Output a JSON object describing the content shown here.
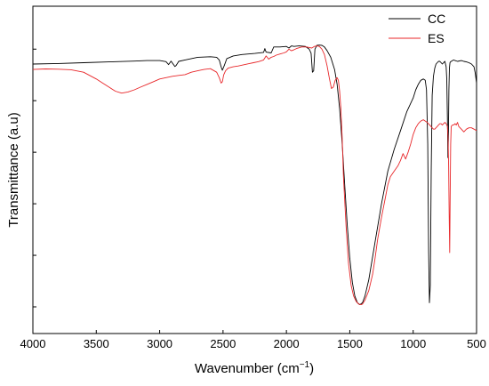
{
  "chart_data": {
    "type": "line",
    "title": "",
    "xlabel": "Wavenumber (cm",
    "xlabel_sup": "−1",
    "xlabel_close": ")",
    "ylabel": "Transmittance (a.u)",
    "xlim": [
      4000,
      500
    ],
    "x_reversed": true,
    "ylim": [
      0,
      100
    ],
    "y_tick_labels_shown": false,
    "y_ticks": [
      0,
      19,
      38,
      57,
      76,
      95
    ],
    "x_ticks": [
      4000,
      3500,
      3000,
      2500,
      2000,
      1500,
      1000,
      500
    ],
    "x_tick_labels": [
      "4000",
      "3500",
      "3000",
      "2500",
      "2000",
      "1500",
      "1000",
      "500"
    ],
    "grid": false,
    "legend_position": "top-right",
    "series": [
      {
        "name": "CC",
        "color": "#000000",
        "x": [
          4000,
          3800,
          3600,
          3400,
          3200,
          3100,
          3000,
          2950,
          2930,
          2910,
          2880,
          2870,
          2850,
          2800,
          2750,
          2700,
          2600,
          2550,
          2530,
          2515,
          2505,
          2490,
          2470,
          2420,
          2350,
          2250,
          2180,
          2170,
          2160,
          2120,
          2100,
          2050,
          2000,
          1980,
          1960,
          1940,
          1900,
          1850,
          1820,
          1805,
          1795,
          1785,
          1775,
          1760,
          1740,
          1720,
          1700,
          1680,
          1650,
          1620,
          1600,
          1580,
          1560,
          1540,
          1520,
          1500,
          1480,
          1460,
          1440,
          1420,
          1400,
          1380,
          1350,
          1300,
          1250,
          1200,
          1150,
          1100,
          1050,
          1000,
          980,
          960,
          940,
          920,
          905,
          895,
          885,
          878,
          872,
          865,
          858,
          850,
          840,
          830,
          820,
          810,
          800,
          790,
          780,
          770,
          760,
          750,
          740,
          735,
          730,
          726,
          722,
          718,
          714,
          710,
          706,
          700,
          690,
          680,
          670,
          650,
          620,
          600,
          580,
          560,
          540,
          520,
          510,
          500
        ],
        "y": [
          89.5,
          89.7,
          90,
          90.3,
          90.6,
          90.8,
          90.8,
          90.4,
          89.3,
          90.6,
          88.6,
          89.0,
          90.5,
          91.0,
          91.5,
          92.0,
          92.2,
          92.0,
          91.0,
          88.5,
          87.2,
          89.0,
          91.5,
          92.5,
          93.0,
          93.4,
          93.8,
          95.2,
          93.9,
          93.6,
          95.8,
          95.8,
          96.0,
          95.4,
          96.2,
          96.0,
          96.2,
          96.0,
          95.0,
          93.5,
          86.5,
          87.0,
          95.0,
          96.4,
          96.5,
          96.4,
          95.8,
          94.5,
          92.0,
          87.5,
          82.0,
          73.0,
          60.0,
          45.0,
          30.0,
          18.0,
          9.0,
          4.0,
          1.5,
          0.8,
          1.5,
          4.0,
          10.0,
          24.0,
          38.0,
          50.0,
          58.0,
          65.0,
          72.0,
          77.0,
          80.0,
          82.0,
          83.5,
          84.0,
          83.5,
          80.0,
          60.0,
          20.0,
          1.5,
          8.0,
          50.0,
          78.0,
          85.0,
          88.0,
          89.5,
          90.0,
          90.5,
          90.5,
          90.0,
          89.5,
          90.0,
          90.5,
          88.5,
          84.0,
          70.0,
          55.0,
          62.0,
          80.0,
          88.0,
          90.0,
          90.3,
          90.5,
          90.8,
          91.0,
          90.8,
          90.5,
          90.8,
          90.5,
          90.3,
          90.0,
          89.5,
          88.5,
          86.0,
          82.5
        ]
      },
      {
        "name": "ES",
        "color": "#e8272a",
        "x": [
          4000,
          3900,
          3800,
          3700,
          3600,
          3500,
          3450,
          3400,
          3350,
          3300,
          3250,
          3200,
          3150,
          3100,
          3050,
          3000,
          2950,
          2900,
          2850,
          2800,
          2750,
          2700,
          2650,
          2600,
          2550,
          2530,
          2515,
          2505,
          2495,
          2480,
          2460,
          2420,
          2380,
          2340,
          2300,
          2260,
          2220,
          2180,
          2160,
          2140,
          2120,
          2100,
          2080,
          2050,
          2020,
          2000,
          1980,
          1960,
          1940,
          1920,
          1900,
          1880,
          1860,
          1840,
          1820,
          1800,
          1780,
          1760,
          1740,
          1720,
          1700,
          1680,
          1660,
          1645,
          1630,
          1615,
          1600,
          1590,
          1580,
          1570,
          1560,
          1550,
          1530,
          1510,
          1490,
          1470,
          1450,
          1430,
          1410,
          1400,
          1380,
          1350,
          1320,
          1300,
          1280,
          1250,
          1220,
          1200,
          1180,
          1150,
          1120,
          1100,
          1080,
          1060,
          1040,
          1020,
          1000,
          980,
          960,
          940,
          920,
          905,
          890,
          880,
          870,
          860,
          850,
          840,
          830,
          820,
          810,
          800,
          790,
          780,
          770,
          760,
          750,
          740,
          730,
          725,
          720,
          716,
          712,
          708,
          704,
          700,
          690,
          680,
          670,
          660,
          650,
          640,
          620,
          600,
          580,
          560,
          540,
          520,
          500
        ],
        "y": [
          87.5,
          87.7,
          87.6,
          87.4,
          86.5,
          84.0,
          82.5,
          81.0,
          79.5,
          78.8,
          79.2,
          80.0,
          81.0,
          82.0,
          83.0,
          84.0,
          84.5,
          85.0,
          85.3,
          85.6,
          86.5,
          87.0,
          87.5,
          87.8,
          86.5,
          84.5,
          82.5,
          83.0,
          85.5,
          87.0,
          88.0,
          88.5,
          88.8,
          89.2,
          89.6,
          90.0,
          90.4,
          91.0,
          92.5,
          91.3,
          92.0,
          92.3,
          92.8,
          93.2,
          93.6,
          94.0,
          95.0,
          94.4,
          94.8,
          95.2,
          95.5,
          95.8,
          95.8,
          95.8,
          95.6,
          95.4,
          96.0,
          96.2,
          96.0,
          95.0,
          93.0,
          89.0,
          84.0,
          80.5,
          81.0,
          83.5,
          84.5,
          83.5,
          79.5,
          73.0,
          62.0,
          48.0,
          30.0,
          16.0,
          8.0,
          4.0,
          2.0,
          1.0,
          0.8,
          1.0,
          2.5,
          6.0,
          12.0,
          18.0,
          25.0,
          33.0,
          40.0,
          45.0,
          48.0,
          50.0,
          52.0,
          54.0,
          56.5,
          54.5,
          57.0,
          60.0,
          63.5,
          66.0,
          67.5,
          68.5,
          69.0,
          68.5,
          68.0,
          67.5,
          67.0,
          66.5,
          66.0,
          65.5,
          65.5,
          66.0,
          66.5,
          67.0,
          67.5,
          67.5,
          67.0,
          67.5,
          68.0,
          67.5,
          66.5,
          63.0,
          52.0,
          34.0,
          20.0,
          40.0,
          60.0,
          66.5,
          67.0,
          67.0,
          67.5,
          67.0,
          68.0,
          66.5,
          65.5,
          64.5,
          65.5,
          66.0,
          66.0,
          65.5,
          65.0
        ]
      }
    ]
  }
}
